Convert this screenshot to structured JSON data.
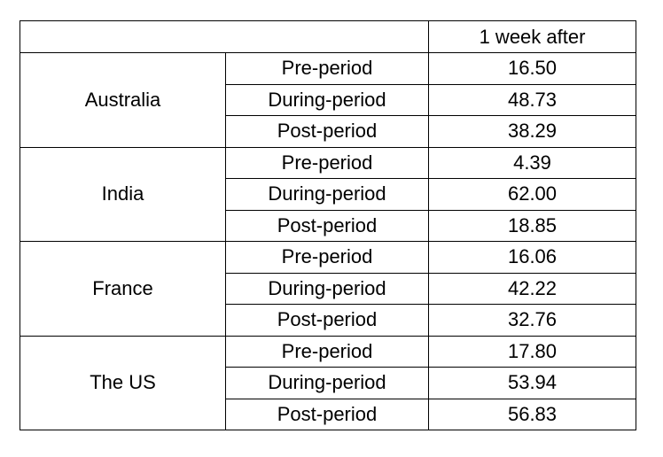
{
  "table": {
    "header": {
      "blank": "",
      "value_column": "1 week after"
    },
    "groups": [
      {
        "country": "Australia",
        "rows": [
          {
            "period": "Pre-period",
            "value": "16.50"
          },
          {
            "period": "During-period",
            "value": "48.73"
          },
          {
            "period": "Post-period",
            "value": "38.29"
          }
        ]
      },
      {
        "country": "India",
        "rows": [
          {
            "period": "Pre-period",
            "value": "4.39"
          },
          {
            "period": "During-period",
            "value": "62.00"
          },
          {
            "period": "Post-period",
            "value": "18.85"
          }
        ]
      },
      {
        "country": "France",
        "rows": [
          {
            "period": "Pre-period",
            "value": "16.06"
          },
          {
            "period": "During-period",
            "value": "42.22"
          },
          {
            "period": "Post-period",
            "value": "32.76"
          }
        ]
      },
      {
        "country": "The US",
        "rows": [
          {
            "period": "Pre-period",
            "value": "17.80"
          },
          {
            "period": "During-period",
            "value": "53.94"
          },
          {
            "period": "Post-period",
            "value": "56.83"
          }
        ]
      }
    ]
  }
}
